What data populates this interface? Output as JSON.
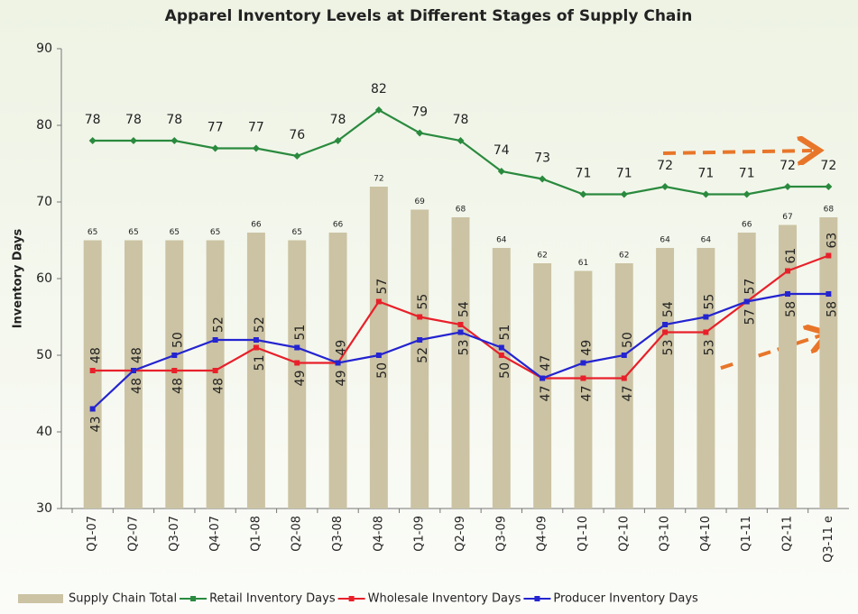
{
  "chart_data": {
    "type": "bar",
    "title": "Apparel Inventory Levels at Different Stages of Supply Chain",
    "y_label": "Inventory Days",
    "categories": [
      "Q1-07",
      "Q2-07",
      "Q3-07",
      "Q4-07",
      "Q1-08",
      "Q2-08",
      "Q3-08",
      "Q4-08",
      "Q1-09",
      "Q2-09",
      "Q3-09",
      "Q4-09",
      "Q1-10",
      "Q2-10",
      "Q3-10",
      "Q4-10",
      "Q1-11",
      "Q2-11",
      "Q3-11 e"
    ],
    "series": [
      {
        "name": "Supply Chain Total",
        "type": "bar",
        "color": "#cbc3a3",
        "values": [
          65,
          65,
          65,
          65,
          66,
          65,
          66,
          72,
          69,
          68,
          64,
          62,
          61,
          62,
          64,
          64,
          66,
          67,
          68
        ]
      },
      {
        "name": "Retail Inventory Days",
        "type": "line",
        "color": "#2a8a3e",
        "values": [
          78,
          78,
          78,
          77,
          77,
          76,
          78,
          82,
          79,
          78,
          74,
          73,
          71,
          71,
          72,
          71,
          71,
          72,
          72
        ]
      },
      {
        "name": "Wholesale Inventory Days",
        "type": "line",
        "color": "#e8202a",
        "values": [
          48,
          48,
          48,
          48,
          51,
          49,
          49,
          57,
          55,
          54,
          50,
          47,
          47,
          47,
          53,
          53,
          57,
          61,
          63
        ]
      },
      {
        "name": "Producer Inventory Days",
        "type": "line",
        "color": "#2424d0",
        "values": [
          43,
          48,
          50,
          52,
          52,
          51,
          49,
          50,
          52,
          53,
          51,
          47,
          49,
          50,
          54,
          55,
          57,
          58,
          58
        ]
      }
    ],
    "ylim": [
      30,
      90
    ],
    "yticks": [
      30,
      40,
      50,
      60,
      70,
      80,
      90
    ],
    "legend": "bottom"
  }
}
